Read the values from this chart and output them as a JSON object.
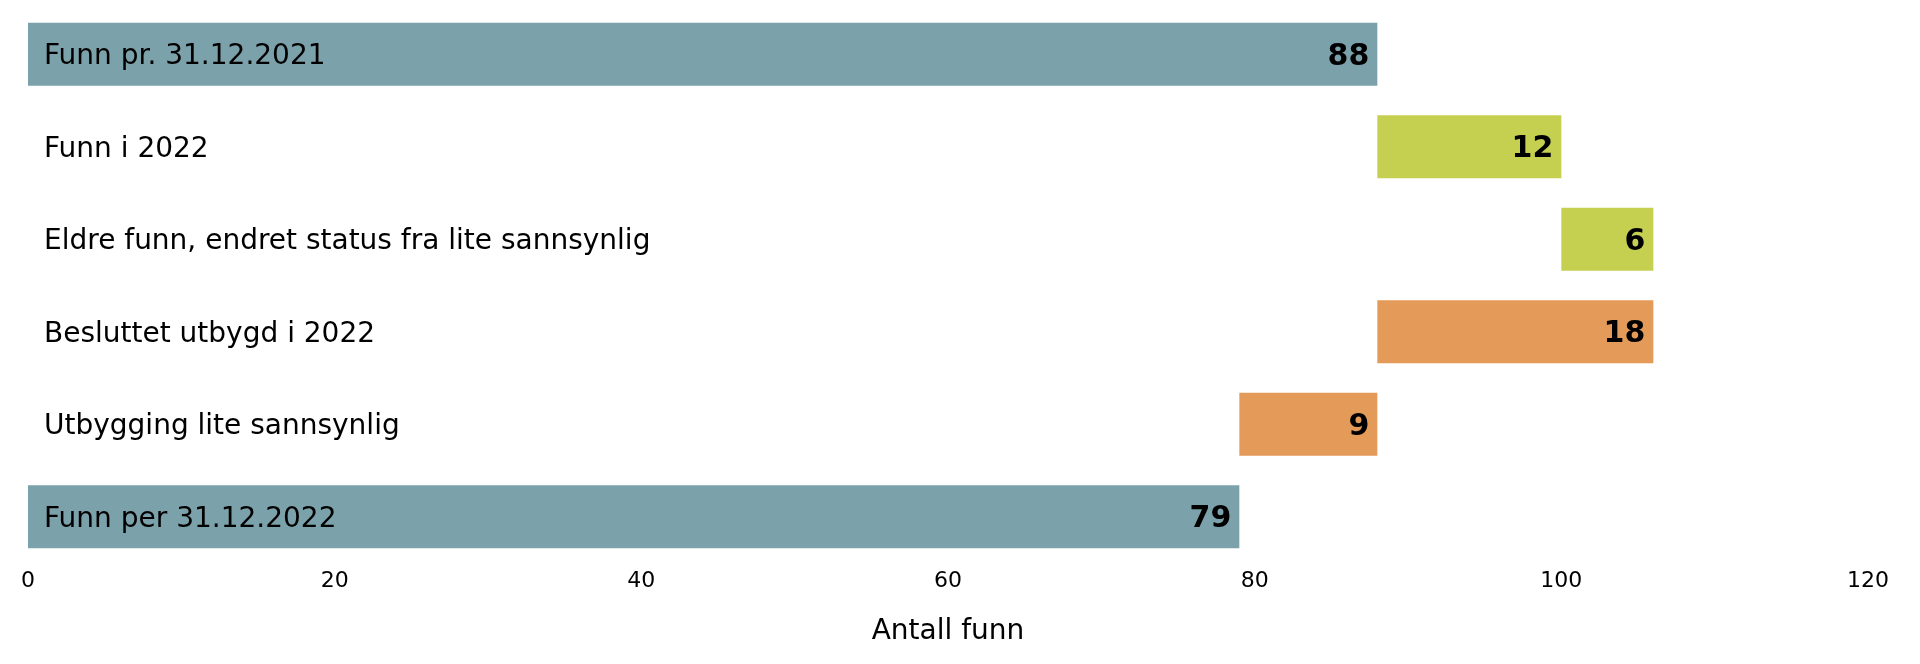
{
  "chart_data": {
    "type": "bar",
    "orientation": "horizontal",
    "categories": [
      "Funn pr. 31.12.2021",
      "Funn i 2022",
      "Eldre funn, endret status fra lite sannsynlig",
      "Besluttet utbygd i 2022",
      "Utbygging lite sannsynlig",
      "Funn per 31.12.2022"
    ],
    "values": [
      88,
      12,
      6,
      18,
      9,
      79
    ],
    "base": [
      0,
      88,
      100,
      88,
      79,
      0
    ],
    "colors": [
      "#7ba1aa",
      "#c5cf50",
      "#c5cf50",
      "#e49a58",
      "#e49a58",
      "#7ba1aa"
    ],
    "xlim": [
      0,
      120
    ],
    "xticks": [
      0,
      20,
      40,
      60,
      80,
      100,
      120
    ],
    "xlabel": "Antall funn",
    "data_labels": true,
    "grid": false
  }
}
